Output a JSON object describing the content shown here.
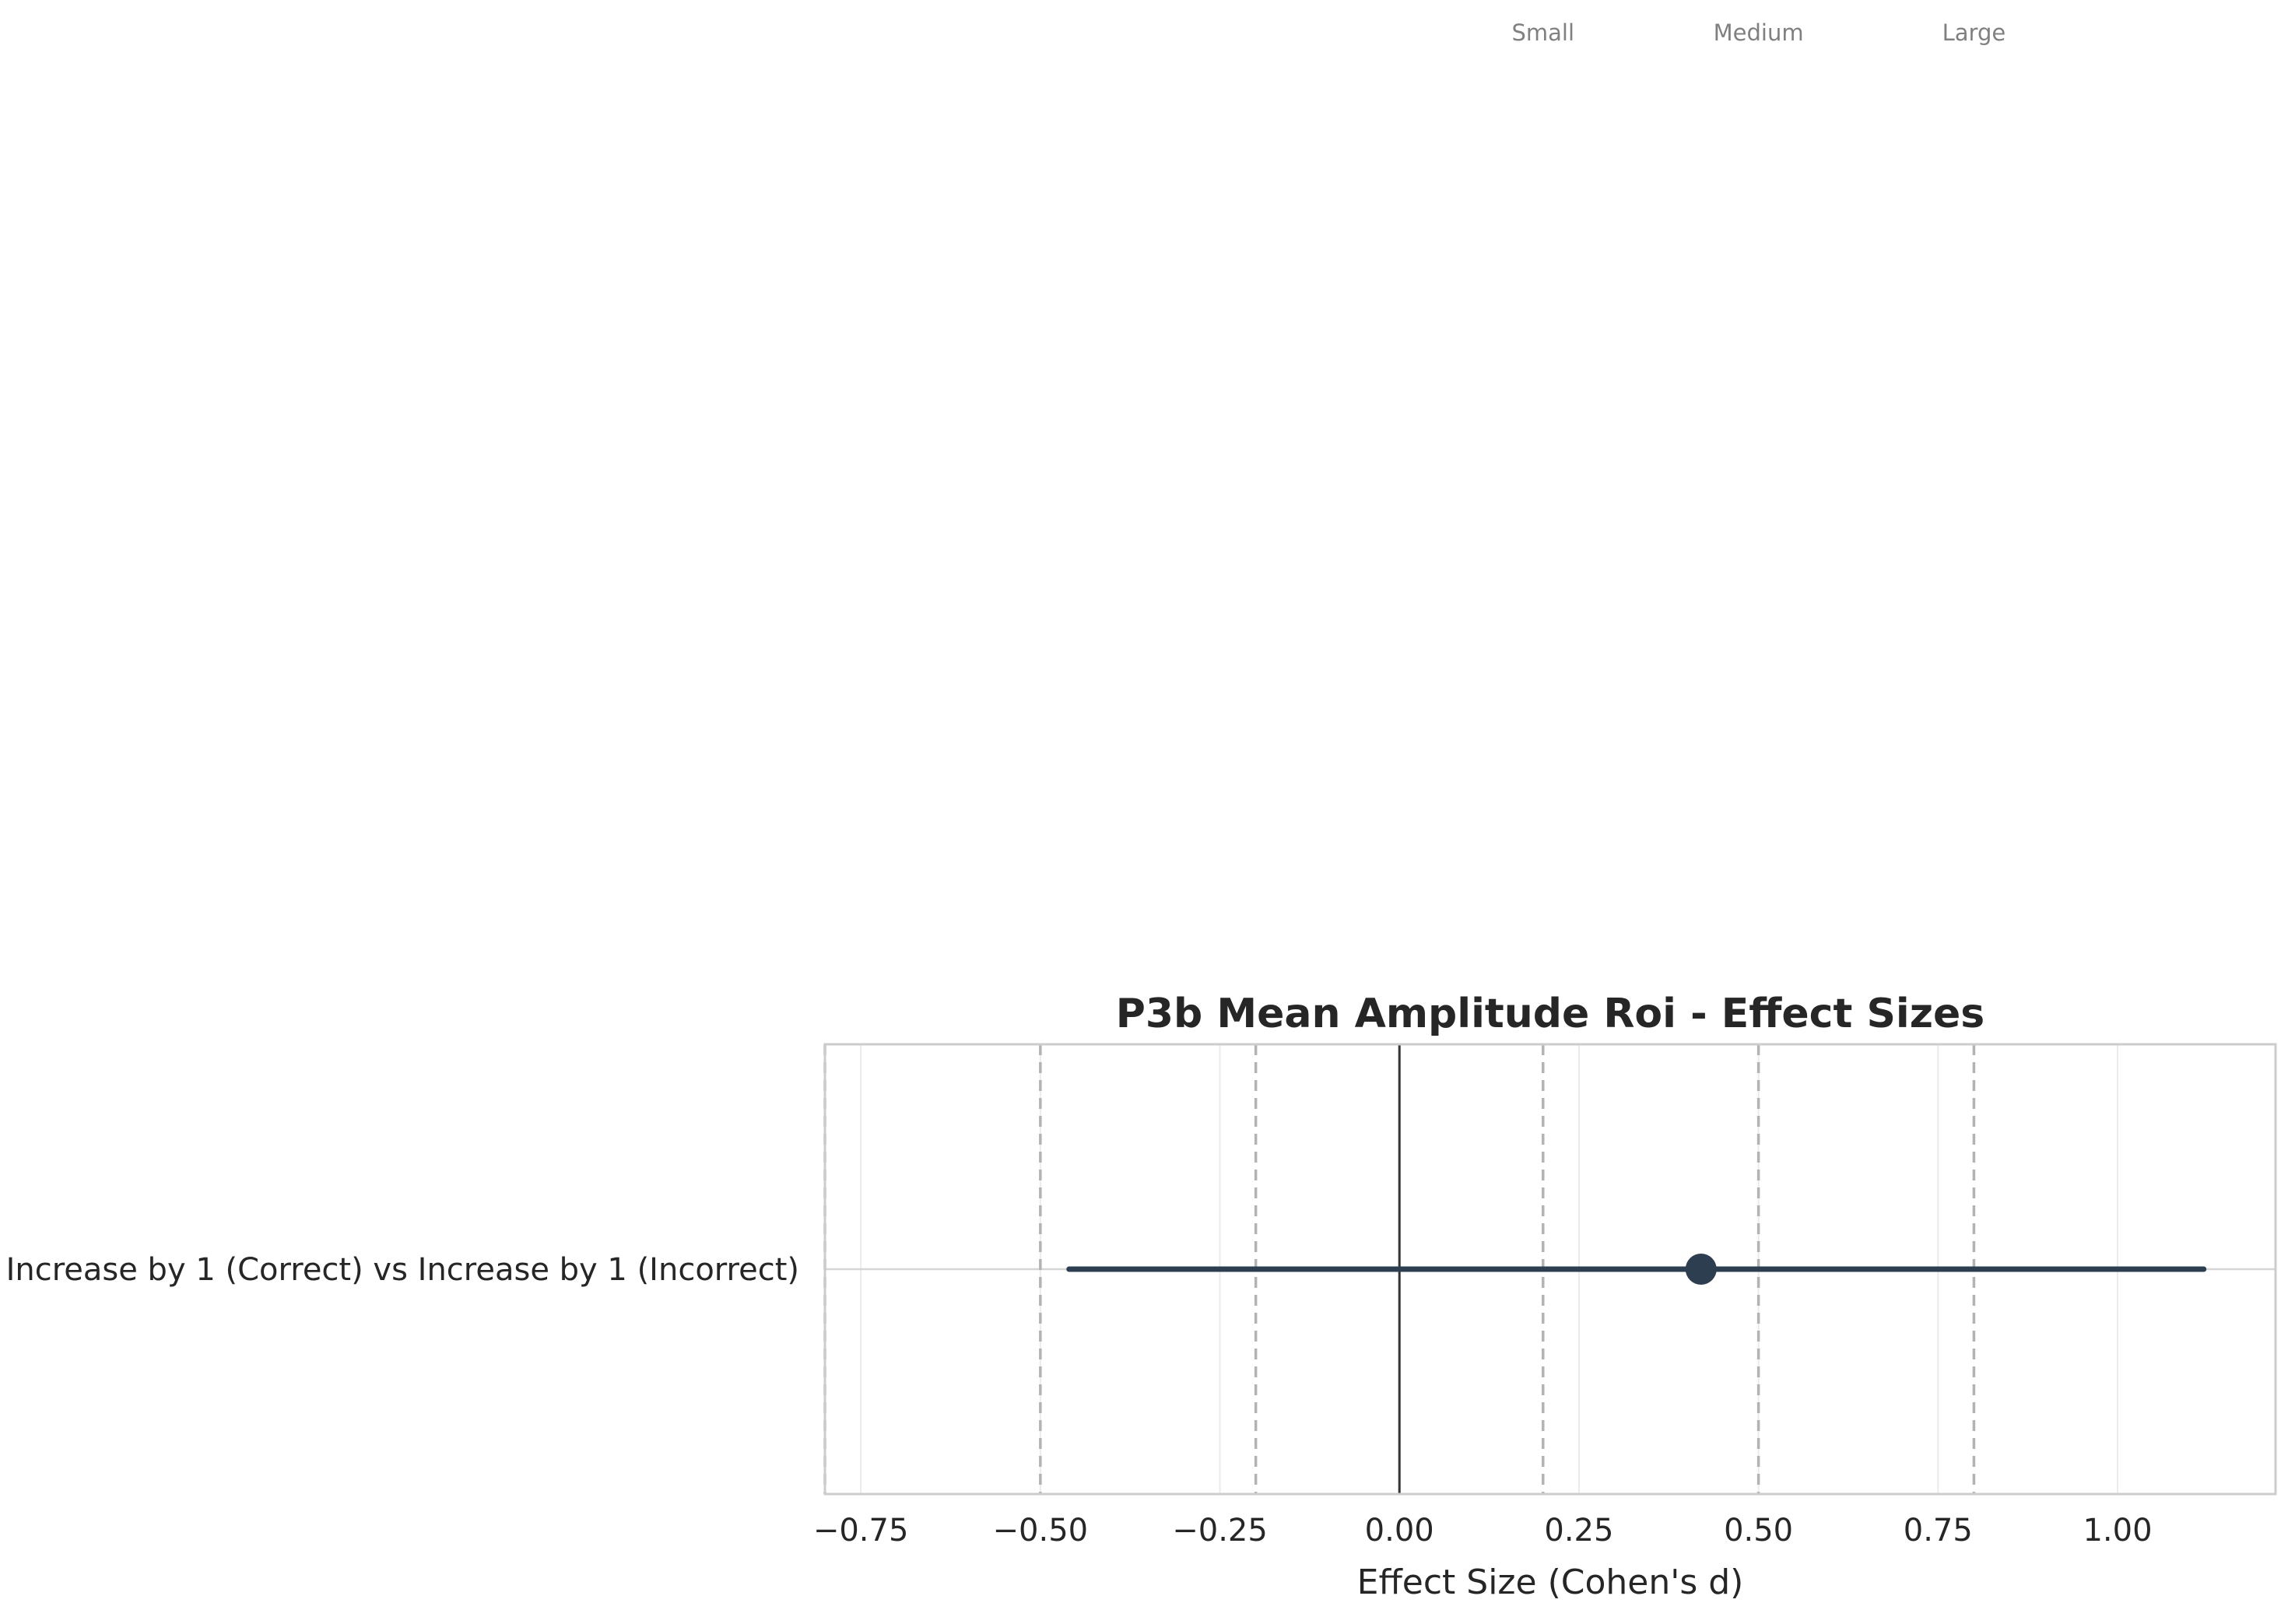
{
  "chart_data": {
    "type": "forest",
    "title": "P3b Mean Amplitude Roi - Effect Sizes",
    "xlabel": "Effect Size (Cohen's d)",
    "ylabel": "",
    "xlim": [
      -0.8,
      1.22
    ],
    "xticks": [
      -0.75,
      -0.5,
      -0.25,
      0.0,
      0.25,
      0.5,
      0.75,
      1.0
    ],
    "xtick_labels": [
      "−0.75",
      "−0.50",
      "−0.25",
      "0.00",
      "0.25",
      "0.50",
      "0.75",
      "1.00"
    ],
    "grid": true,
    "rows": [
      {
        "label": "Increase by 1 (Correct) vs Increase by 1 (Incorrect)",
        "estimate": 0.42,
        "ci_lower": -0.46,
        "ci_upper": 1.12
      }
    ],
    "zero_line": 0.0,
    "threshold_lines": [
      -0.8,
      -0.5,
      -0.2,
      0.2,
      0.5,
      0.8
    ],
    "threshold_labels": [
      {
        "x": 0.2,
        "label": "Small"
      },
      {
        "x": 0.5,
        "label": "Medium"
      },
      {
        "x": 0.8,
        "label": "Large"
      }
    ],
    "colors": {
      "marker": "#2c3e50",
      "ci_line": "#2c3e50",
      "zero_line": "#333333",
      "threshold_line": "#b3b3b3",
      "grid": "#ebebeb",
      "frame": "#cccccc",
      "threshold_label": "#808080"
    }
  }
}
